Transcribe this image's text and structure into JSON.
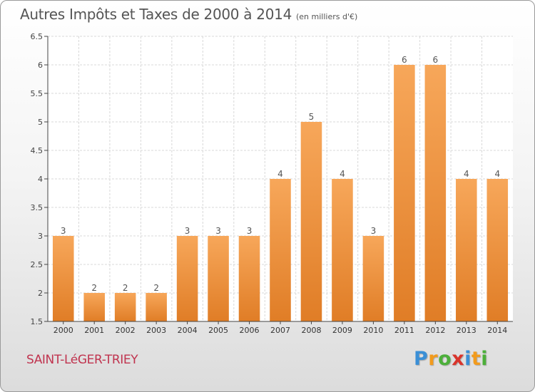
{
  "chart_data": {
    "type": "bar",
    "title": "Autres Impôts et Taxes de 2000 à 2014",
    "subtitle": "(en milliers d'€)",
    "categories": [
      "2000",
      "2001",
      "2002",
      "2003",
      "2004",
      "2005",
      "2006",
      "2007",
      "2008",
      "2009",
      "2010",
      "2011",
      "2012",
      "2013",
      "2014"
    ],
    "values": [
      3,
      2,
      2,
      2,
      3,
      3,
      3,
      4,
      5,
      4,
      3,
      6,
      6,
      4,
      4
    ],
    "data_labels": [
      "3",
      "2",
      "2",
      "2",
      "3",
      "3",
      "3",
      "4",
      "5",
      "4",
      "3",
      "6",
      "6",
      "4",
      "4"
    ],
    "ylim": [
      1.5,
      6.5
    ],
    "yticks": [
      1.5,
      2,
      2.5,
      3,
      3.5,
      4,
      4.5,
      5,
      5.5,
      6,
      6.5
    ],
    "ytick_labels": [
      "1.5",
      "2",
      "2.5",
      "3",
      "3.5",
      "4",
      "4.5",
      "5",
      "5.5",
      "6",
      "6.5"
    ],
    "grid": true,
    "colors": {
      "bar_light": "#f7a75a",
      "bar_dark": "#e07d26",
      "grid": "#d8d8d8"
    }
  },
  "location": "SAINT-LéGER-TRIEY",
  "logo": {
    "letters": [
      "P",
      "r",
      "o",
      "x",
      "i",
      "t",
      "i"
    ],
    "colors": [
      "#3a8fd6",
      "#f29b1d",
      "#4caf3a",
      "#d9342b",
      "#3a8fd6",
      "#f29b1d",
      "#4caf3a"
    ]
  }
}
